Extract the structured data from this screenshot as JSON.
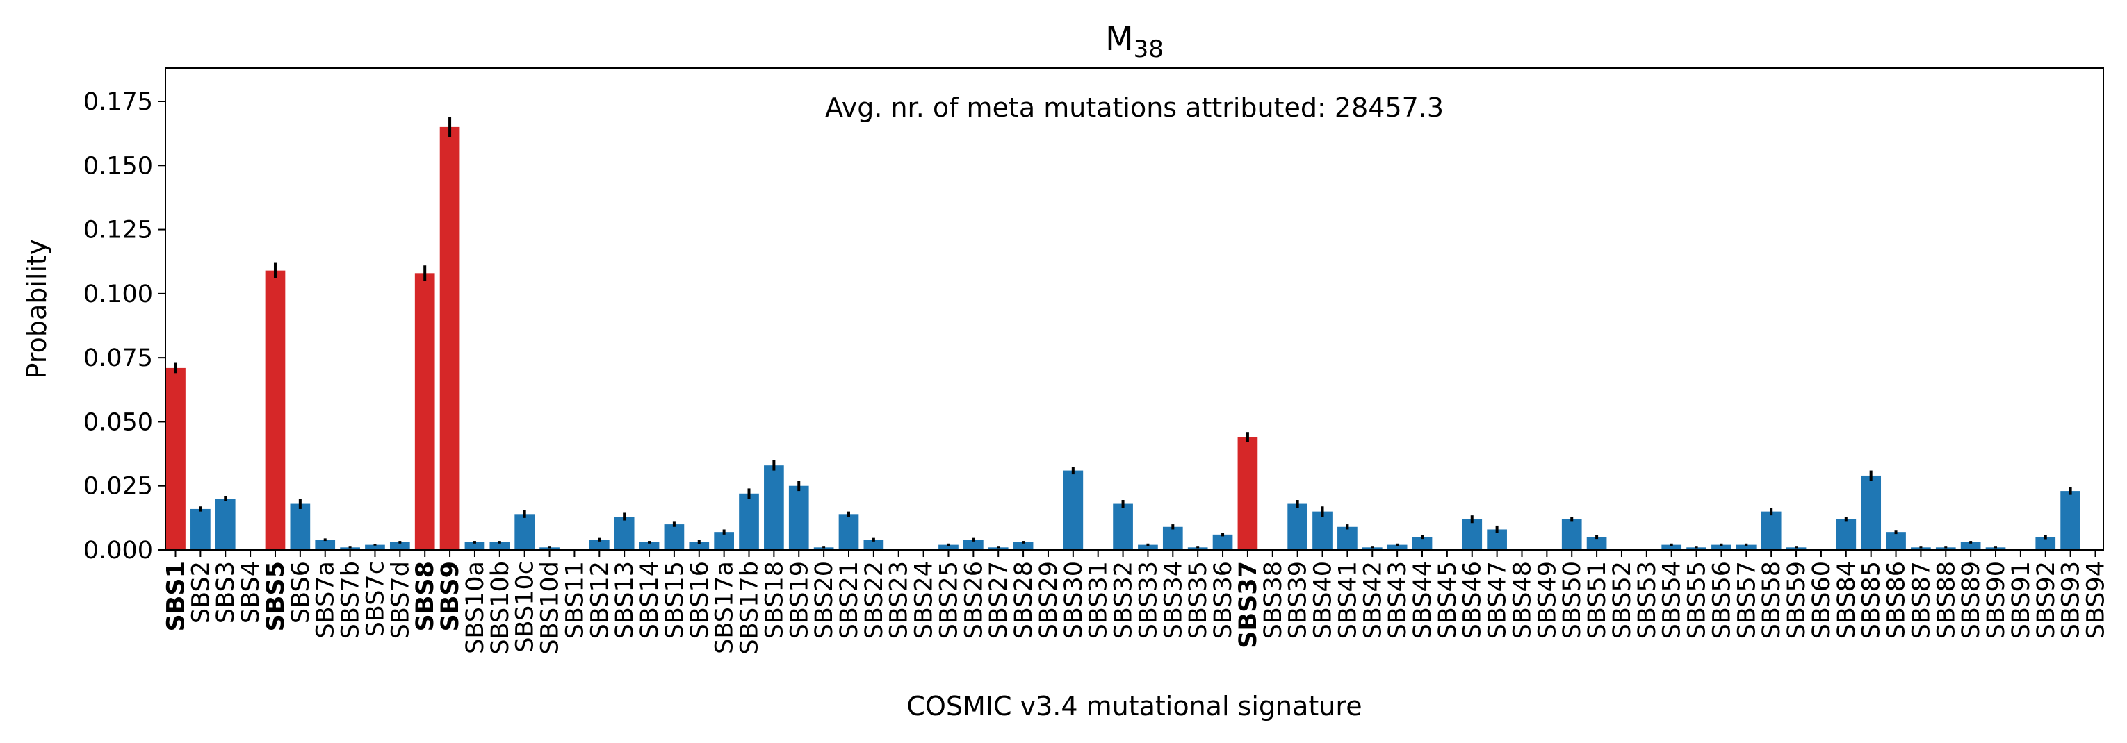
{
  "chart_data": {
    "type": "bar",
    "title": "M",
    "title_subscript": "38",
    "xlabel": "COSMIC v3.4 mutational signature",
    "ylabel": "Probability",
    "annotation": "Avg. nr. of meta mutations attributed: 28457.3",
    "ylim": [
      0,
      0.188
    ],
    "yticks": [
      "0.000",
      "0.025",
      "0.050",
      "0.075",
      "0.100",
      "0.125",
      "0.150",
      "0.175"
    ],
    "ytick_values": [
      0,
      0.025,
      0.05,
      0.075,
      0.1,
      0.125,
      0.15,
      0.175
    ],
    "colors": {
      "highlight": "#d62728",
      "default": "#1f77b4",
      "error_bar": "#000000"
    },
    "categories": [
      "SBS1",
      "SBS2",
      "SBS3",
      "SBS4",
      "SBS5",
      "SBS6",
      "SBS7a",
      "SBS7b",
      "SBS7c",
      "SBS7d",
      "SBS8",
      "SBS9",
      "SBS10a",
      "SBS10b",
      "SBS10c",
      "SBS10d",
      "SBS11",
      "SBS12",
      "SBS13",
      "SBS14",
      "SBS15",
      "SBS16",
      "SBS17a",
      "SBS17b",
      "SBS18",
      "SBS19",
      "SBS20",
      "SBS21",
      "SBS22",
      "SBS23",
      "SBS24",
      "SBS25",
      "SBS26",
      "SBS27",
      "SBS28",
      "SBS29",
      "SBS30",
      "SBS31",
      "SBS32",
      "SBS33",
      "SBS34",
      "SBS35",
      "SBS36",
      "SBS37",
      "SBS38",
      "SBS39",
      "SBS40",
      "SBS41",
      "SBS42",
      "SBS43",
      "SBS44",
      "SBS45",
      "SBS46",
      "SBS47",
      "SBS48",
      "SBS49",
      "SBS50",
      "SBS51",
      "SBS52",
      "SBS53",
      "SBS54",
      "SBS55",
      "SBS56",
      "SBS57",
      "SBS58",
      "SBS59",
      "SBS60",
      "SBS84",
      "SBS85",
      "SBS86",
      "SBS87",
      "SBS88",
      "SBS89",
      "SBS90",
      "SBS91",
      "SBS92",
      "SBS93",
      "SBS94"
    ],
    "values": [
      0.071,
      0.016,
      0.02,
      0.0,
      0.109,
      0.018,
      0.004,
      0.001,
      0.002,
      0.003,
      0.108,
      0.165,
      0.003,
      0.003,
      0.014,
      0.001,
      0.0,
      0.004,
      0.013,
      0.003,
      0.01,
      0.003,
      0.007,
      0.022,
      0.033,
      0.025,
      0.001,
      0.014,
      0.004,
      0.0,
      0.0,
      0.002,
      0.004,
      0.001,
      0.003,
      0.0,
      0.031,
      0.0,
      0.018,
      0.002,
      0.009,
      0.001,
      0.006,
      0.044,
      0.0,
      0.018,
      0.015,
      0.009,
      0.001,
      0.002,
      0.005,
      0.0,
      0.012,
      0.008,
      0.0,
      0.0,
      0.012,
      0.005,
      0.0,
      0.0,
      0.002,
      0.001,
      0.002,
      0.002,
      0.015,
      0.001,
      0.0,
      0.012,
      0.029,
      0.007,
      0.001,
      0.001,
      0.003,
      0.001,
      0.0,
      0.005,
      0.023,
      0.0
    ],
    "errors": [
      0.002,
      0.001,
      0.001,
      0.0,
      0.003,
      0.002,
      0.0005,
      0.0003,
      0.0003,
      0.0005,
      0.003,
      0.004,
      0.0005,
      0.0005,
      0.0015,
      0.0003,
      0.0002,
      0.0007,
      0.0015,
      0.0005,
      0.001,
      0.0008,
      0.001,
      0.002,
      0.002,
      0.002,
      0.0003,
      0.001,
      0.0007,
      0.0001,
      0.0001,
      0.0005,
      0.0007,
      0.0003,
      0.0005,
      0.0002,
      0.0015,
      0.0001,
      0.0015,
      0.0005,
      0.001,
      0.0003,
      0.0007,
      0.002,
      0.0002,
      0.0015,
      0.002,
      0.001,
      0.0003,
      0.0005,
      0.0007,
      0.0001,
      0.0015,
      0.0015,
      0.0001,
      0.0001,
      0.001,
      0.0007,
      0.0001,
      0.0001,
      0.0005,
      0.0003,
      0.0005,
      0.0005,
      0.0015,
      0.0003,
      0.0001,
      0.001,
      0.002,
      0.0008,
      0.0003,
      0.0003,
      0.0005,
      0.0003,
      0.0001,
      0.0008,
      0.0015,
      0.0001
    ],
    "highlighted": [
      "SBS1",
      "SBS5",
      "SBS8",
      "SBS9",
      "SBS37"
    ],
    "grid": false,
    "legend": "none"
  }
}
